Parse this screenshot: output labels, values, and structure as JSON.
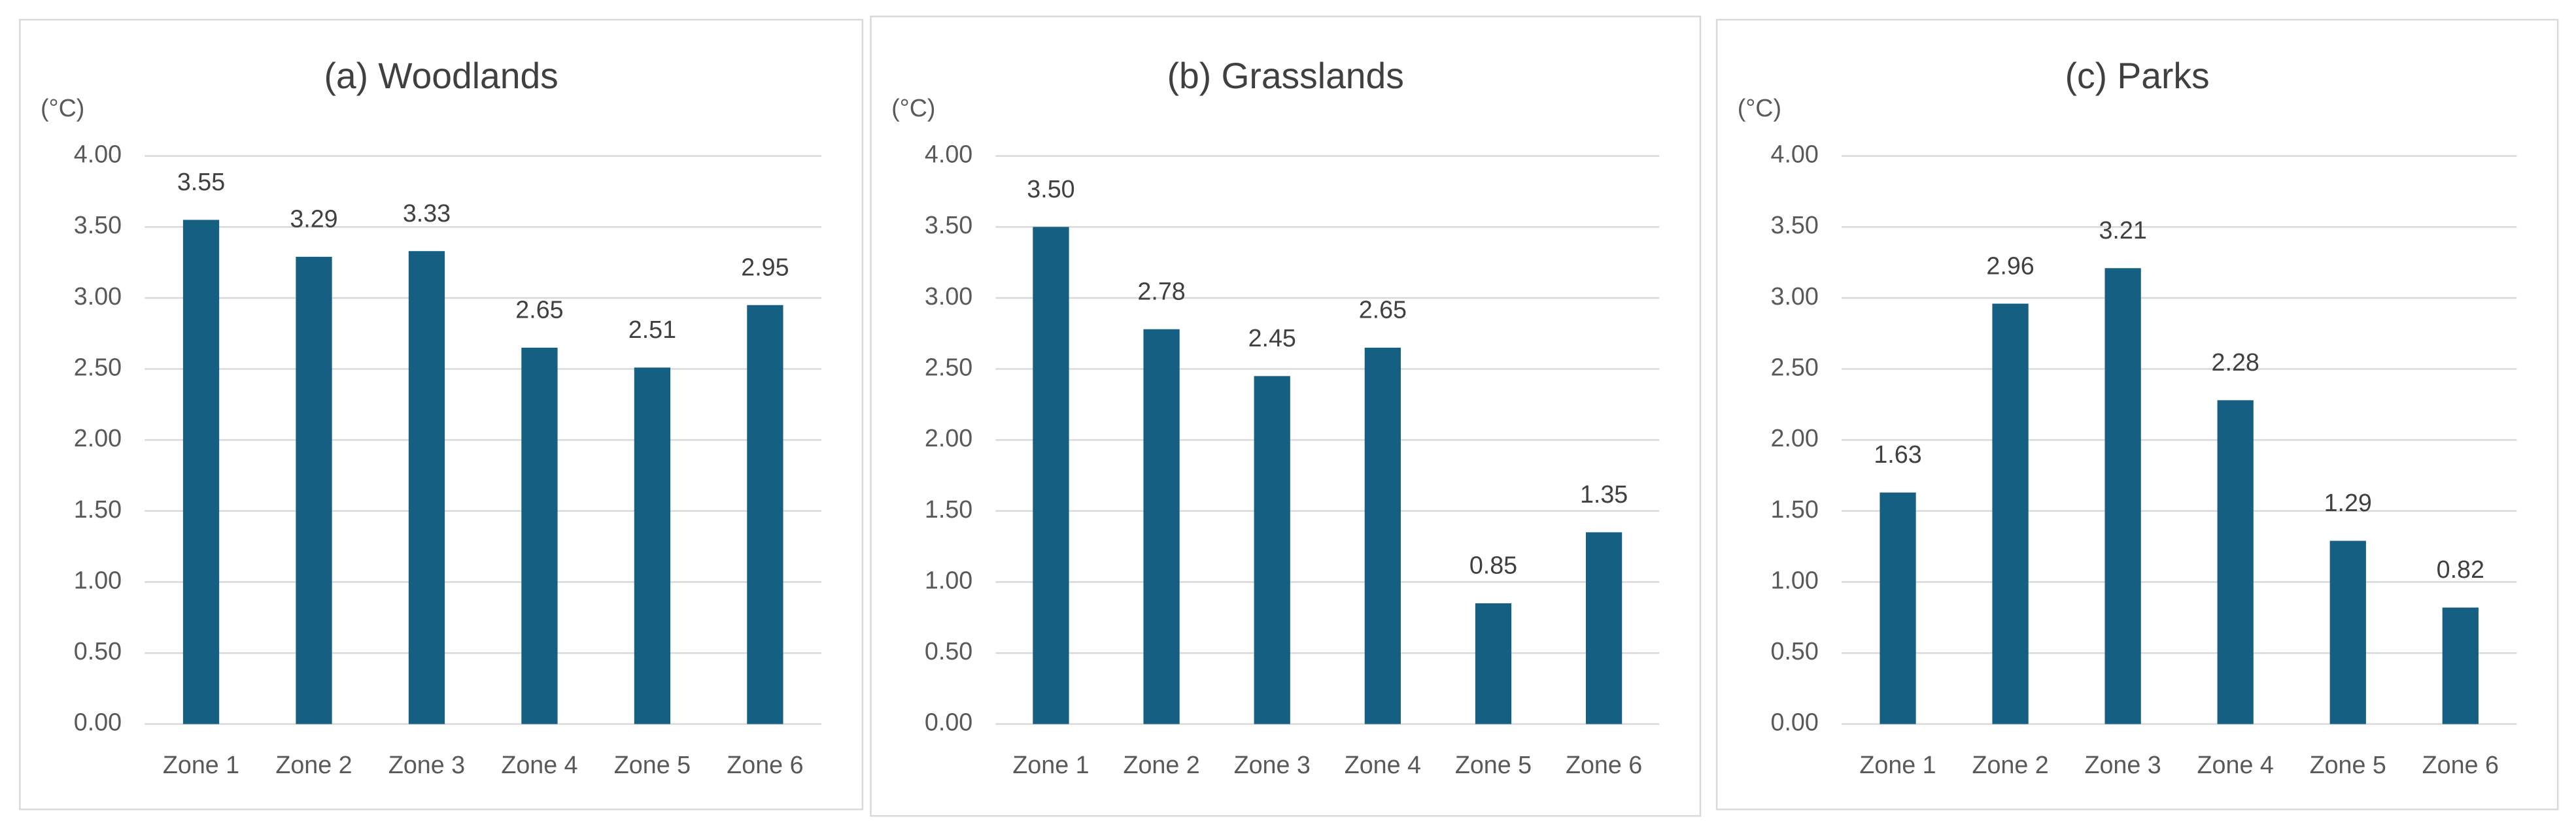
{
  "chart_data": [
    {
      "type": "bar",
      "title": "(a) Woodlands",
      "y_label": "(°C)",
      "categories": [
        "Zone 1",
        "Zone 2",
        "Zone 3",
        "Zone 4",
        "Zone 5",
        "Zone 6"
      ],
      "values": [
        3.55,
        3.29,
        3.33,
        2.65,
        2.51,
        2.95
      ],
      "value_labels": [
        "3.55",
        "3.29",
        "3.33",
        "2.65",
        "2.51",
        "2.95"
      ],
      "color": "#156082",
      "ylim": [
        0,
        4
      ],
      "grid": true,
      "yticks": [
        {
          "value": 0,
          "label": "0.00"
        },
        {
          "value": 0.5,
          "label": "0.50"
        },
        {
          "value": 1,
          "label": "1.00"
        },
        {
          "value": 1.5,
          "label": "1.50"
        },
        {
          "value": 2,
          "label": "2.00"
        },
        {
          "value": 2.5,
          "label": "2.50"
        },
        {
          "value": 3,
          "label": "3.00"
        },
        {
          "value": 3.5,
          "label": "3.50"
        },
        {
          "value": 4,
          "label": "4.00"
        }
      ]
    },
    {
      "type": "bar",
      "title": "(b) Grasslands",
      "y_label": "(°C)",
      "categories": [
        "Zone 1",
        "Zone 2",
        "Zone 3",
        "Zone 4",
        "Zone 5",
        "Zone 6"
      ],
      "values": [
        3.5,
        2.78,
        2.45,
        2.65,
        0.85,
        1.35
      ],
      "value_labels": [
        "3.50",
        "2.78",
        "2.45",
        "2.65",
        "0.85",
        "1.35"
      ],
      "color": "#156082",
      "ylim": [
        0,
        4
      ],
      "grid": true,
      "yticks": [
        {
          "value": 0,
          "label": "0.00"
        },
        {
          "value": 0.5,
          "label": "0.50"
        },
        {
          "value": 1,
          "label": "1.00"
        },
        {
          "value": 1.5,
          "label": "1.50"
        },
        {
          "value": 2,
          "label": "2.00"
        },
        {
          "value": 2.5,
          "label": "2.50"
        },
        {
          "value": 3,
          "label": "3.00"
        },
        {
          "value": 3.5,
          "label": "3.50"
        },
        {
          "value": 4,
          "label": "4.00"
        }
      ]
    },
    {
      "type": "bar",
      "title": "(c) Parks",
      "y_label": "(°C)",
      "categories": [
        "Zone 1",
        "Zone 2",
        "Zone 3",
        "Zone 4",
        "Zone 5",
        "Zone 6"
      ],
      "values": [
        1.63,
        2.96,
        3.21,
        2.28,
        1.29,
        0.82
      ],
      "value_labels": [
        "1.63",
        "2.96",
        "3.21",
        "2.28",
        "1.29",
        "0.82"
      ],
      "color": "#156082",
      "ylim": [
        0,
        4
      ],
      "grid": true,
      "yticks": [
        {
          "value": 0,
          "label": "0.00"
        },
        {
          "value": 0.5,
          "label": "0.50"
        },
        {
          "value": 1,
          "label": "1.00"
        },
        {
          "value": 1.5,
          "label": "1.50"
        },
        {
          "value": 2,
          "label": "2.00"
        },
        {
          "value": 2.5,
          "label": "2.50"
        },
        {
          "value": 3,
          "label": "3.00"
        },
        {
          "value": 3.5,
          "label": "3.50"
        },
        {
          "value": 4,
          "label": "4.00"
        }
      ]
    }
  ]
}
